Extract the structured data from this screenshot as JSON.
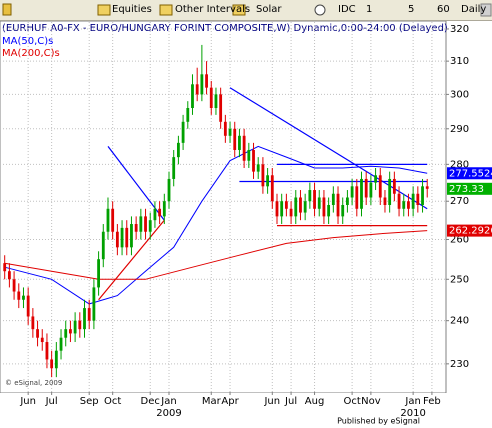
{
  "toolbar": [
    "Equities",
    "Other Intervals",
    "Solar",
    "IDC",
    "1",
    "5",
    "60",
    "Daily"
  ],
  "chart_data": {
    "type": "candlestick",
    "title": "(EURHUF A0-FX - EURO/HUNGARY FORINT COMPOSITE,W) Dynamic,0:00-24:00 (Delayed)",
    "watermark": "© eSignal, 2009",
    "footer": "Published by eSignal",
    "log_scale": true,
    "grid": true,
    "up_color": "#00a000",
    "down_color": "#e00000",
    "ylim": [
      223.7,
      322.2
    ],
    "yticks": [
      230,
      240,
      250,
      260,
      270,
      280,
      290,
      300,
      310,
      320
    ],
    "xlim": [
      -1,
      94
    ],
    "xticks": [
      {
        "value": 5,
        "label": "Jun"
      },
      {
        "value": 10,
        "label": "Jul"
      },
      {
        "value": 18,
        "label": "Sep"
      },
      {
        "value": 23,
        "label": "Oct"
      },
      {
        "value": 31,
        "label": "Dec"
      },
      {
        "value": 35,
        "label": "Jan"
      },
      {
        "value": 44,
        "label": "Mar"
      },
      {
        "value": 48,
        "label": "Apr"
      },
      {
        "value": 57,
        "label": "Jun"
      },
      {
        "value": 61,
        "label": "Jul"
      },
      {
        "value": 66,
        "label": "Aug"
      },
      {
        "value": 74,
        "label": "Oct"
      },
      {
        "value": 78,
        "label": "Nov"
      },
      {
        "value": 87,
        "label": "Jan"
      },
      {
        "value": 91,
        "label": "Feb"
      }
    ],
    "year_labels": [
      {
        "value": 35,
        "label": "2009"
      },
      {
        "value": 87,
        "label": "2010"
      }
    ],
    "open": [
      254,
      252,
      250,
      247,
      245,
      246,
      241,
      238,
      236,
      235,
      231,
      229,
      233,
      236,
      238,
      237,
      240,
      238,
      243,
      240,
      248,
      255,
      262,
      268,
      262,
      258,
      263,
      258,
      264,
      262,
      266,
      262,
      265,
      268,
      266,
      270,
      276,
      282,
      286,
      292,
      296,
      303,
      300,
      306,
      302,
      296,
      300,
      292,
      288,
      290,
      284,
      288,
      281,
      284,
      278,
      280,
      274,
      277,
      270,
      266,
      270,
      268,
      266,
      271,
      267,
      270,
      273,
      268,
      271,
      266,
      269,
      272,
      266,
      269,
      271,
      274,
      268,
      276,
      271,
      275,
      277,
      271,
      269,
      276,
      272,
      268,
      270,
      268,
      272,
      269,
      274
    ],
    "high": [
      256,
      254,
      252,
      249,
      248,
      248,
      243,
      240,
      238,
      237,
      233,
      235,
      238,
      240,
      240,
      242,
      242,
      245,
      245,
      250,
      257,
      264,
      271,
      270,
      264,
      265,
      265,
      266,
      266,
      268,
      268,
      267,
      270,
      270,
      272,
      278,
      284,
      288,
      294,
      298,
      306,
      308,
      315,
      310,
      304,
      302,
      302,
      294,
      292,
      292,
      290,
      290,
      286,
      286,
      282,
      282,
      279,
      279,
      272,
      272,
      272,
      270,
      273,
      273,
      272,
      275,
      275,
      273,
      273,
      271,
      274,
      274,
      271,
      273,
      276,
      276,
      278,
      278,
      277,
      279,
      279,
      273,
      278,
      278,
      274,
      272,
      272,
      274,
      274,
      276,
      276
    ],
    "low": [
      250,
      248,
      245,
      243,
      243,
      239,
      236,
      234,
      233,
      229,
      227,
      227,
      231,
      234,
      235,
      235,
      236,
      236,
      238,
      238,
      246,
      253,
      260,
      260,
      256,
      256,
      256,
      256,
      260,
      260,
      260,
      260,
      263,
      264,
      264,
      268,
      274,
      280,
      284,
      290,
      294,
      298,
      298,
      300,
      294,
      294,
      290,
      286,
      286,
      282,
      282,
      279,
      279,
      276,
      276,
      272,
      272,
      268,
      264,
      264,
      266,
      264,
      264,
      265,
      265,
      268,
      266,
      266,
      264,
      264,
      267,
      264,
      264,
      267,
      269,
      266,
      266,
      269,
      269,
      273,
      269,
      267,
      267,
      270,
      266,
      266,
      266,
      266,
      267,
      267,
      271
    ],
    "close": [
      252,
      250,
      247,
      245,
      246,
      241,
      238,
      236,
      235,
      231,
      229,
      233,
      236,
      238,
      237,
      240,
      238,
      243,
      240,
      248,
      255,
      262,
      268,
      262,
      258,
      263,
      258,
      264,
      262,
      266,
      262,
      265,
      268,
      266,
      270,
      276,
      282,
      286,
      292,
      296,
      303,
      300,
      306,
      302,
      296,
      300,
      292,
      288,
      290,
      284,
      288,
      281,
      284,
      278,
      280,
      274,
      277,
      270,
      266,
      270,
      268,
      266,
      271,
      267,
      270,
      273,
      268,
      271,
      266,
      269,
      272,
      266,
      269,
      271,
      274,
      268,
      276,
      271,
      275,
      277,
      271,
      269,
      276,
      272,
      268,
      270,
      268,
      272,
      269,
      274,
      273.33
    ],
    "close_color": "#00b000",
    "series": [
      {
        "name": "MA(50,C)s",
        "color": "#0000ff",
        "x": [
          0,
          10,
          18,
          24,
          30,
          36,
          42,
          48,
          54,
          60,
          66,
          72,
          78,
          84,
          90
        ],
        "values": [
          253,
          250,
          244,
          246,
          252,
          258,
          270,
          281,
          285,
          282,
          279,
          279,
          279.5,
          279,
          277.5524
        ]
      },
      {
        "name": "MA(200,C)s",
        "color": "#e00000",
        "x": [
          0,
          10,
          20,
          30,
          40,
          50,
          60,
          70,
          80,
          90
        ],
        "values": [
          254,
          252,
          250,
          250,
          253,
          256,
          259,
          260.5,
          261.5,
          262.2926
        ]
      }
    ],
    "trendlines": [
      {
        "color": "#0000ff",
        "x": [
          22,
          34
        ],
        "values": [
          285,
          265
        ]
      },
      {
        "color": "#e00000",
        "x": [
          20,
          34
        ],
        "values": [
          245,
          265
        ]
      },
      {
        "color": "#0000ff",
        "x": [
          48,
          90
        ],
        "values": [
          302,
          268
        ]
      },
      {
        "color": "#0000ff",
        "x": [
          58,
          90
        ],
        "values": [
          280,
          280
        ]
      },
      {
        "color": "#0000ff",
        "x": [
          50,
          90
        ],
        "values": [
          275.3,
          275.3
        ]
      },
      {
        "color": "#e00000",
        "x": [
          58,
          90
        ],
        "values": [
          263.6,
          263.6
        ]
      }
    ]
  }
}
